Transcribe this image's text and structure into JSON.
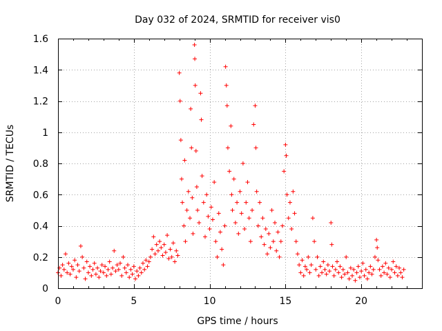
{
  "chart_data": {
    "type": "scatter",
    "title": "Day 032 of 2024, SRMTID for receiver vis0",
    "xlabel": "GPS time / hours",
    "ylabel": "SRMTID / TECUs",
    "xlim": [
      0,
      24
    ],
    "ylim": [
      0,
      1.6
    ],
    "x_ticks": [
      0,
      5,
      10,
      15,
      20
    ],
    "x_tick_labels": [
      "0",
      "5",
      "10",
      "15",
      "20"
    ],
    "y_ticks": [
      0,
      0.2,
      0.4,
      0.6,
      0.8,
      1.0,
      1.2,
      1.4,
      1.6
    ],
    "y_tick_labels": [
      "0",
      "0.2",
      "0.4",
      "0.6",
      "0.8",
      "1",
      "1.2",
      "1.4",
      "1.6"
    ],
    "grid": true,
    "marker": "plus",
    "series": [
      {
        "name": "SRMTID",
        "color": "#ff0000",
        "points": [
          [
            0.0,
            0.1
          ],
          [
            0.1,
            0.13
          ],
          [
            0.2,
            0.08
          ],
          [
            0.3,
            0.15
          ],
          [
            0.4,
            0.12
          ],
          [
            0.5,
            0.22
          ],
          [
            0.6,
            0.1
          ],
          [
            0.7,
            0.16
          ],
          [
            0.8,
            0.09
          ],
          [
            0.9,
            0.14
          ],
          [
            1.0,
            0.12
          ],
          [
            1.1,
            0.18
          ],
          [
            1.2,
            0.07
          ],
          [
            1.3,
            0.15
          ],
          [
            1.4,
            0.11
          ],
          [
            1.5,
            0.27
          ],
          [
            1.6,
            0.2
          ],
          [
            1.7,
            0.13
          ],
          [
            1.8,
            0.06
          ],
          [
            1.9,
            0.17
          ],
          [
            2.0,
            0.1
          ],
          [
            2.1,
            0.14
          ],
          [
            2.2,
            0.08
          ],
          [
            2.3,
            0.12
          ],
          [
            2.4,
            0.16
          ],
          [
            2.5,
            0.09
          ],
          [
            2.6,
            0.13
          ],
          [
            2.7,
            0.07
          ],
          [
            2.8,
            0.11
          ],
          [
            2.9,
            0.15
          ],
          [
            3.0,
            0.1
          ],
          [
            3.1,
            0.14
          ],
          [
            3.2,
            0.08
          ],
          [
            3.3,
            0.12
          ],
          [
            3.4,
            0.17
          ],
          [
            3.5,
            0.09
          ],
          [
            3.6,
            0.13
          ],
          [
            3.7,
            0.24
          ],
          [
            3.8,
            0.11
          ],
          [
            3.9,
            0.15
          ],
          [
            4.0,
            0.12
          ],
          [
            4.1,
            0.16
          ],
          [
            4.2,
            0.08
          ],
          [
            4.3,
            0.2
          ],
          [
            4.4,
            0.13
          ],
          [
            4.5,
            0.1
          ],
          [
            4.6,
            0.15
          ],
          [
            4.7,
            0.07
          ],
          [
            4.8,
            0.12
          ],
          [
            4.9,
            0.09
          ],
          [
            5.0,
            0.14
          ],
          [
            5.1,
            0.06
          ],
          [
            5.2,
            0.11
          ],
          [
            5.3,
            0.08
          ],
          [
            5.4,
            0.13
          ],
          [
            5.5,
            0.1
          ],
          [
            5.6,
            0.16
          ],
          [
            5.7,
            0.12
          ],
          [
            5.8,
            0.18
          ],
          [
            5.9,
            0.14
          ],
          [
            6.0,
            0.17
          ],
          [
            6.1,
            0.2
          ],
          [
            6.2,
            0.25
          ],
          [
            6.3,
            0.33
          ],
          [
            6.4,
            0.22
          ],
          [
            6.5,
            0.28
          ],
          [
            6.6,
            0.24
          ],
          [
            6.7,
            0.3
          ],
          [
            6.8,
            0.26
          ],
          [
            6.9,
            0.21
          ],
          [
            7.0,
            0.28
          ],
          [
            7.1,
            0.23
          ],
          [
            7.2,
            0.34
          ],
          [
            7.3,
            0.19
          ],
          [
            7.4,
            0.25
          ],
          [
            7.5,
            0.2
          ],
          [
            7.6,
            0.29
          ],
          [
            7.7,
            0.17
          ],
          [
            7.8,
            0.24
          ],
          [
            7.9,
            0.21
          ],
          [
            8.0,
            1.38
          ],
          [
            8.05,
            1.2
          ],
          [
            8.1,
            0.95
          ],
          [
            8.15,
            0.7
          ],
          [
            8.2,
            0.55
          ],
          [
            8.3,
            0.4
          ],
          [
            8.35,
            0.82
          ],
          [
            8.4,
            0.3
          ],
          [
            8.5,
            0.5
          ],
          [
            8.6,
            0.62
          ],
          [
            8.7,
            0.45
          ],
          [
            8.75,
            1.15
          ],
          [
            8.8,
            0.9
          ],
          [
            8.85,
            0.58
          ],
          [
            8.9,
            0.35
          ],
          [
            9.0,
            1.56
          ],
          [
            9.02,
            1.47
          ],
          [
            9.05,
            1.3
          ],
          [
            9.1,
            0.88
          ],
          [
            9.15,
            0.65
          ],
          [
            9.2,
            0.5
          ],
          [
            9.3,
            0.42
          ],
          [
            9.4,
            1.25
          ],
          [
            9.45,
            1.08
          ],
          [
            9.5,
            0.72
          ],
          [
            9.6,
            0.55
          ],
          [
            9.7,
            0.33
          ],
          [
            9.8,
            0.6
          ],
          [
            9.9,
            0.46
          ],
          [
            10.0,
            0.38
          ],
          [
            10.1,
            0.52
          ],
          [
            10.2,
            0.44
          ],
          [
            10.3,
            0.68
          ],
          [
            10.4,
            0.3
          ],
          [
            10.5,
            0.2
          ],
          [
            10.6,
            0.48
          ],
          [
            10.7,
            0.36
          ],
          [
            10.8,
            0.25
          ],
          [
            10.9,
            0.15
          ],
          [
            11.0,
            0.4
          ],
          [
            11.05,
            1.42
          ],
          [
            11.1,
            1.3
          ],
          [
            11.15,
            1.17
          ],
          [
            11.2,
            0.9
          ],
          [
            11.3,
            0.75
          ],
          [
            11.4,
            1.04
          ],
          [
            11.45,
            0.6
          ],
          [
            11.5,
            0.5
          ],
          [
            11.6,
            0.7
          ],
          [
            11.7,
            0.42
          ],
          [
            11.8,
            0.55
          ],
          [
            11.9,
            0.35
          ],
          [
            12.0,
            0.62
          ],
          [
            12.1,
            0.48
          ],
          [
            12.2,
            0.8
          ],
          [
            12.3,
            0.38
          ],
          [
            12.4,
            0.55
          ],
          [
            12.5,
            0.68
          ],
          [
            12.6,
            0.45
          ],
          [
            12.7,
            0.3
          ],
          [
            12.8,
            0.5
          ],
          [
            12.9,
            1.05
          ],
          [
            13.0,
            1.17
          ],
          [
            13.05,
            0.9
          ],
          [
            13.1,
            0.62
          ],
          [
            13.2,
            0.4
          ],
          [
            13.3,
            0.55
          ],
          [
            13.4,
            0.33
          ],
          [
            13.5,
            0.45
          ],
          [
            13.6,
            0.28
          ],
          [
            13.7,
            0.38
          ],
          [
            13.8,
            0.22
          ],
          [
            13.9,
            0.35
          ],
          [
            14.0,
            0.26
          ],
          [
            14.1,
            0.5
          ],
          [
            14.2,
            0.3
          ],
          [
            14.3,
            0.42
          ],
          [
            14.4,
            0.24
          ],
          [
            14.5,
            0.36
          ],
          [
            14.6,
            0.2
          ],
          [
            14.7,
            0.3
          ],
          [
            14.8,
            0.4
          ],
          [
            14.9,
            0.75
          ],
          [
            15.0,
            0.92
          ],
          [
            15.05,
            0.85
          ],
          [
            15.1,
            0.6
          ],
          [
            15.2,
            0.45
          ],
          [
            15.3,
            0.55
          ],
          [
            15.4,
            0.38
          ],
          [
            15.5,
            0.62
          ],
          [
            15.6,
            0.48
          ],
          [
            15.7,
            0.3
          ],
          [
            15.8,
            0.22
          ],
          [
            15.9,
            0.15
          ],
          [
            16.0,
            0.1
          ],
          [
            16.1,
            0.18
          ],
          [
            16.2,
            0.08
          ],
          [
            16.3,
            0.14
          ],
          [
            16.4,
            0.12
          ],
          [
            16.5,
            0.2
          ],
          [
            16.6,
            0.1
          ],
          [
            16.7,
            0.15
          ],
          [
            16.8,
            0.45
          ],
          [
            16.9,
            0.3
          ],
          [
            17.0,
            0.12
          ],
          [
            17.1,
            0.2
          ],
          [
            17.2,
            0.08
          ],
          [
            17.3,
            0.14
          ],
          [
            17.4,
            0.1
          ],
          [
            17.5,
            0.17
          ],
          [
            17.6,
            0.12
          ],
          [
            17.7,
            0.09
          ],
          [
            17.8,
            0.15
          ],
          [
            17.9,
            0.11
          ],
          [
            18.0,
            0.42
          ],
          [
            18.05,
            0.28
          ],
          [
            18.1,
            0.14
          ],
          [
            18.2,
            0.08
          ],
          [
            18.3,
            0.12
          ],
          [
            18.4,
            0.17
          ],
          [
            18.5,
            0.1
          ],
          [
            18.6,
            0.14
          ],
          [
            18.7,
            0.07
          ],
          [
            18.8,
            0.12
          ],
          [
            18.9,
            0.09
          ],
          [
            19.0,
            0.2
          ],
          [
            19.1,
            0.1
          ],
          [
            19.2,
            0.06
          ],
          [
            19.3,
            0.13
          ],
          [
            19.4,
            0.08
          ],
          [
            19.5,
            0.12
          ],
          [
            19.6,
            0.05
          ],
          [
            19.7,
            0.1
          ],
          [
            19.8,
            0.14
          ],
          [
            19.9,
            0.07
          ],
          [
            20.0,
            0.11
          ],
          [
            20.1,
            0.16
          ],
          [
            20.2,
            0.08
          ],
          [
            20.3,
            0.12
          ],
          [
            20.4,
            0.06
          ],
          [
            20.5,
            0.1
          ],
          [
            20.6,
            0.14
          ],
          [
            20.7,
            0.09
          ],
          [
            20.8,
            0.12
          ],
          [
            20.9,
            0.2
          ],
          [
            21.0,
            0.31
          ],
          [
            21.05,
            0.26
          ],
          [
            21.1,
            0.18
          ],
          [
            21.2,
            0.12
          ],
          [
            21.3,
            0.08
          ],
          [
            21.4,
            0.14
          ],
          [
            21.5,
            0.1
          ],
          [
            21.6,
            0.16
          ],
          [
            21.7,
            0.09
          ],
          [
            21.8,
            0.13
          ],
          [
            21.9,
            0.07
          ],
          [
            22.0,
            0.12
          ],
          [
            22.1,
            0.17
          ],
          [
            22.2,
            0.1
          ],
          [
            22.3,
            0.14
          ],
          [
            22.4,
            0.08
          ],
          [
            22.5,
            0.13
          ],
          [
            22.6,
            0.1
          ],
          [
            22.7,
            0.07
          ],
          [
            22.8,
            0.12
          ]
        ]
      }
    ]
  }
}
